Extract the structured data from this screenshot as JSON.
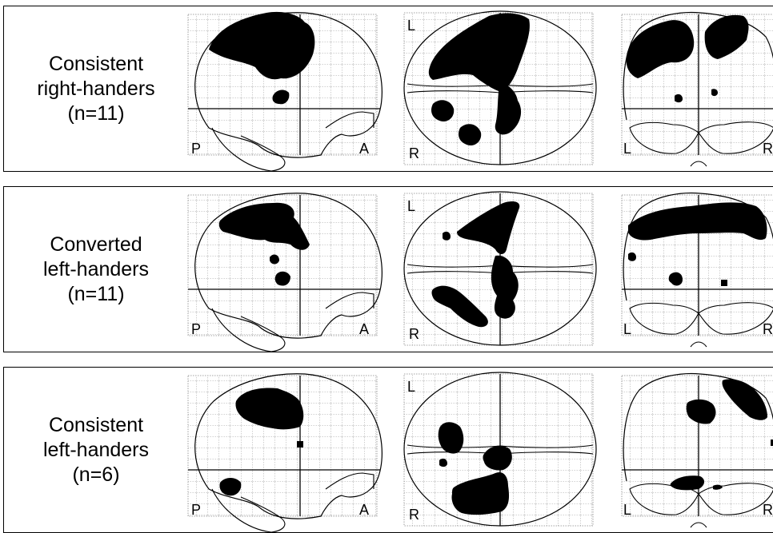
{
  "figure": {
    "panels": [
      {
        "id": "consistent-right",
        "label_lines": [
          "Consistent",
          "right-handers",
          "(n=11)"
        ]
      },
      {
        "id": "converted-left",
        "label_lines": [
          "Converted",
          "left-handers",
          "(n=11)"
        ]
      },
      {
        "id": "consistent-left",
        "label_lines": [
          "Consistent",
          "left-handers",
          "(n=6)"
        ]
      }
    ],
    "views": {
      "sagittal": {
        "left": "P",
        "right": "A"
      },
      "axial": {
        "top": "L",
        "bottom": "R"
      },
      "coronal": {
        "left": "L",
        "right": "R"
      }
    },
    "colors": {
      "blob": "#000000",
      "grid": "#888888",
      "outline": "#000000",
      "background": "#ffffff"
    }
  }
}
